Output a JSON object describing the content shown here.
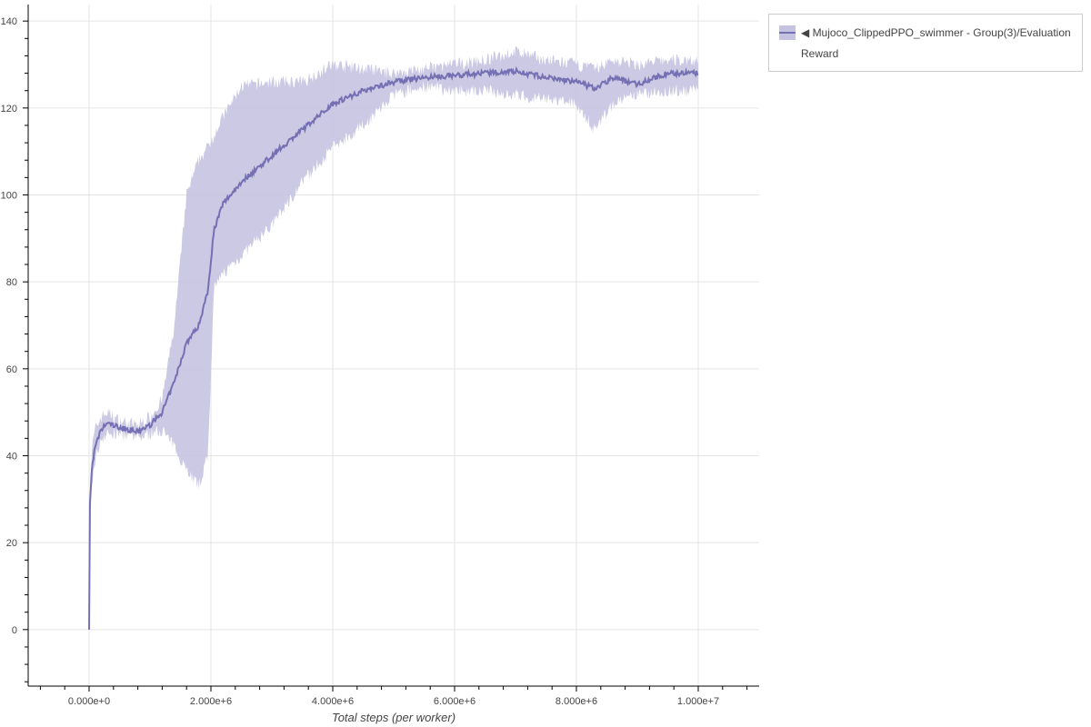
{
  "chart_data": {
    "type": "line",
    "title": "",
    "xlabel": "Total steps (per worker)",
    "ylabel": "",
    "xlim": [
      -1000000,
      11000000
    ],
    "ylim": [
      -13,
      143.8
    ],
    "grid": true,
    "legend_placement": "outside-top-right",
    "x_ticks": [
      0,
      2000000,
      4000000,
      6000000,
      8000000,
      10000000
    ],
    "x_tick_labels": [
      "0.000e+0",
      "2.000e+6",
      "4.000e+6",
      "6.000e+6",
      "8.000e+6",
      "1.000e+7"
    ],
    "y_ticks": [
      0,
      20,
      40,
      60,
      80,
      100,
      120,
      140
    ],
    "y_tick_labels": [
      "0",
      "20",
      "40",
      "60",
      "80",
      "100",
      "120",
      "140"
    ],
    "colors": {
      "line": "#7570b3",
      "band": "#c6c3e1"
    },
    "series": [
      {
        "name": "Mujoco_ClippedPPO_swimmer - Group(3)/Evaluation Reward",
        "x": [
          0,
          10000,
          50000,
          100000,
          200000,
          300000,
          500000,
          800000,
          1000000,
          1200000,
          1400000,
          1600000,
          1800000,
          1950000,
          2050000,
          2200000,
          2500000,
          3000000,
          3500000,
          4000000,
          4500000,
          5000000,
          5500000,
          6000000,
          6500000,
          7000000,
          7500000,
          8000000,
          8300000,
          8600000,
          9000000,
          9500000,
          10000000
        ],
        "mean": [
          0,
          28,
          38,
          42,
          46,
          47.5,
          46.5,
          45.5,
          47,
          50,
          57,
          66,
          70,
          78,
          92,
          98,
          103,
          109,
          115,
          121,
          124,
          126,
          127,
          127.5,
          128,
          128.5,
          127,
          126,
          124.5,
          127,
          125.5,
          128,
          128
        ],
        "upper": [
          0,
          30,
          42,
          46,
          49,
          50,
          48,
          47,
          49,
          53,
          70,
          100,
          108,
          111,
          114,
          118,
          125,
          126,
          126,
          130,
          129,
          128,
          129,
          130,
          131,
          133,
          131,
          130,
          129,
          131,
          130,
          131,
          131
        ],
        "lower": [
          0,
          25,
          34,
          39,
          44,
          45,
          45,
          44,
          45,
          46,
          42,
          37,
          33,
          40,
          78,
          82,
          86,
          93,
          103,
          111,
          116,
          123,
          125,
          124,
          124,
          123,
          122,
          121,
          115,
          121,
          123,
          124,
          124
        ]
      }
    ]
  },
  "legend": {
    "line1": "◀ Mujoco_ClippedPPO_swimmer - Group(3)/Evaluation",
    "line2": "Reward"
  }
}
